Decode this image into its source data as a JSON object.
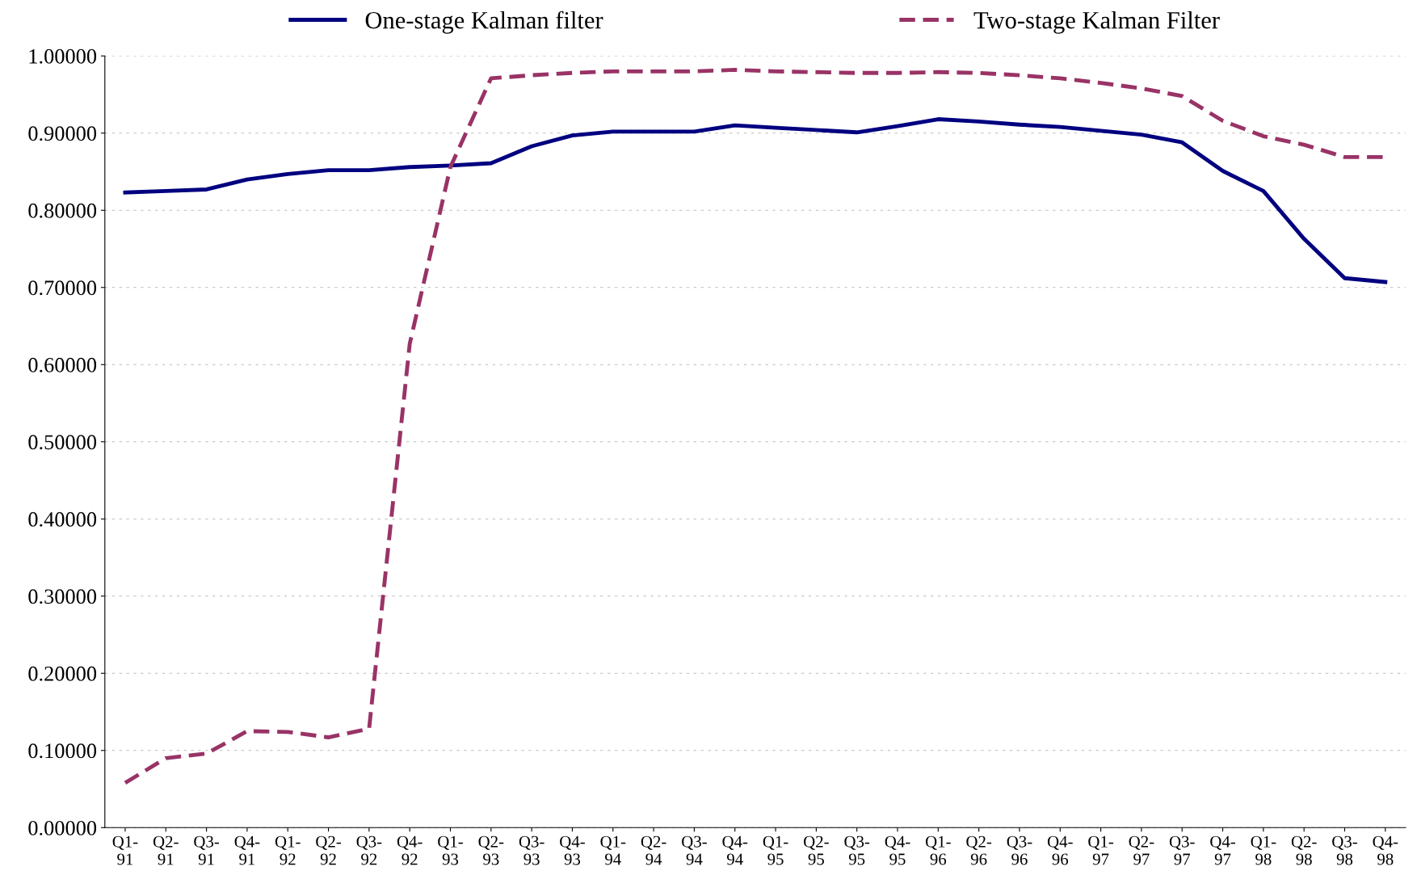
{
  "chart_data": {
    "type": "line",
    "categories": [
      "Q1-\n91",
      "Q2-\n91",
      "Q3-\n91",
      "Q4-\n91",
      "Q1-\n92",
      "Q2-\n92",
      "Q3-\n92",
      "Q4-\n92",
      "Q1-\n93",
      "Q2-\n93",
      "Q3-\n93",
      "Q4-\n93",
      "Q1-\n94",
      "Q2-\n94",
      "Q3-\n94",
      "Q4-\n94",
      "Q1-\n95",
      "Q2-\n95",
      "Q3-\n95",
      "Q4-\n95",
      "Q1-\n96",
      "Q2-\n96",
      "Q3-\n96",
      "Q4-\n96",
      "Q1-\n97",
      "Q2-\n97",
      "Q3-\n97",
      "Q4-\n97",
      "Q1-\n98",
      "Q2-\n98",
      "Q3-\n98",
      "Q4-\n98"
    ],
    "series": [
      {
        "name": "One-stage Kalman filter",
        "color": "#000080",
        "line_style": "solid",
        "values": [
          0.823,
          0.825,
          0.827,
          0.84,
          0.847,
          0.852,
          0.852,
          0.856,
          0.858,
          0.861,
          0.883,
          0.897,
          0.902,
          0.902,
          0.902,
          0.91,
          0.907,
          0.904,
          0.901,
          0.909,
          0.918,
          0.915,
          0.911,
          0.908,
          0.903,
          0.898,
          0.888,
          0.851,
          0.825,
          0.763,
          0.712,
          0.707
        ]
      },
      {
        "name": "Two-stage Kalman Filter",
        "color": "#993366",
        "line_style": "dashed",
        "values": [
          0.058,
          0.09,
          0.096,
          0.125,
          0.124,
          0.117,
          0.128,
          0.627,
          0.856,
          0.971,
          0.975,
          0.978,
          0.98,
          0.98,
          0.98,
          0.982,
          0.98,
          0.979,
          0.978,
          0.978,
          0.979,
          0.978,
          0.975,
          0.971,
          0.965,
          0.958,
          0.948,
          0.916,
          0.896,
          0.885,
          0.869,
          0.869
        ]
      }
    ],
    "ylim": [
      0,
      1
    ],
    "yticks": [
      {
        "value": 0,
        "label": "0.00000"
      },
      {
        "value": 0.1,
        "label": "0.10000"
      },
      {
        "value": 0.2,
        "label": "0.20000"
      },
      {
        "value": 0.3,
        "label": "0.30000"
      },
      {
        "value": 0.4,
        "label": "0.40000"
      },
      {
        "value": 0.5,
        "label": "0.50000"
      },
      {
        "value": 0.6,
        "label": "0.60000"
      },
      {
        "value": 0.7,
        "label": "0.70000"
      },
      {
        "value": 0.8,
        "label": "0.80000"
      },
      {
        "value": 0.9,
        "label": "0.90000"
      },
      {
        "value": 1,
        "label": "1.00000"
      }
    ],
    "grid": "y",
    "legend": "top",
    "marker": "none"
  }
}
